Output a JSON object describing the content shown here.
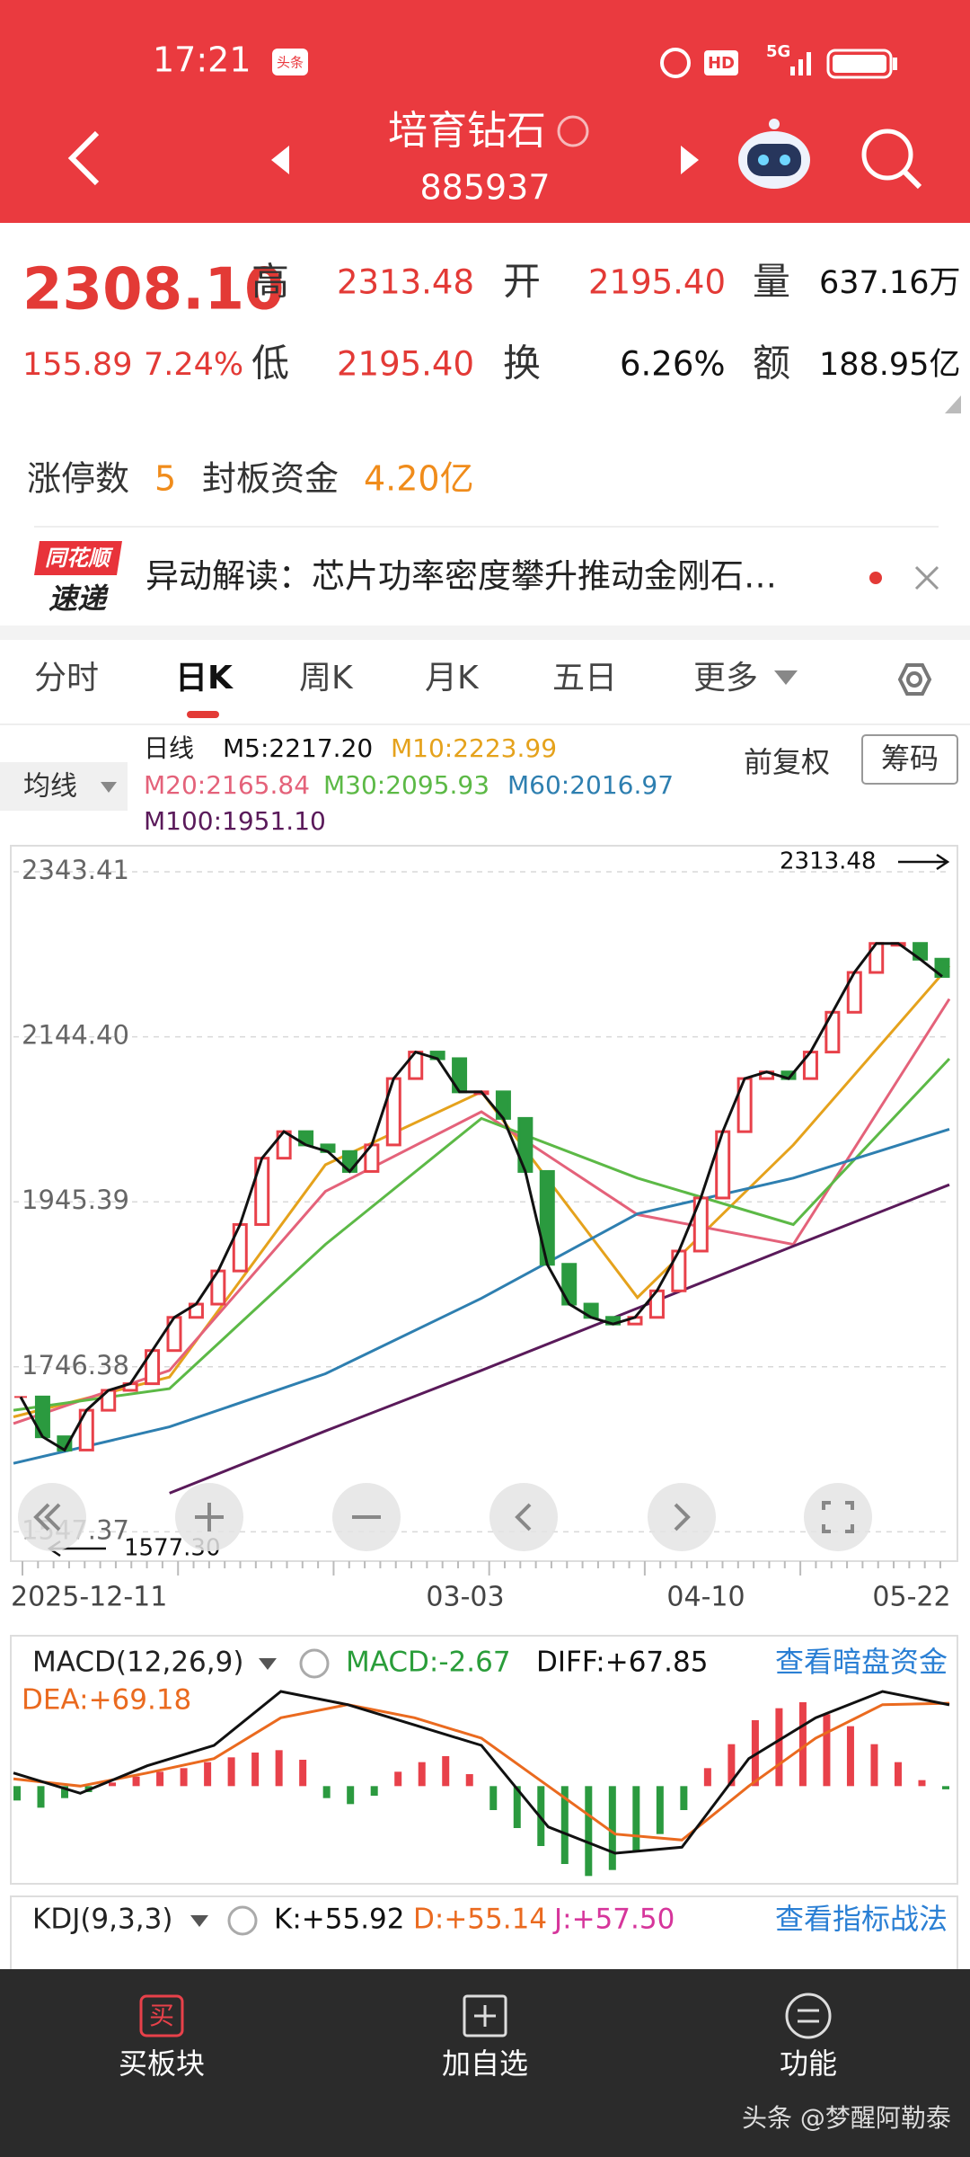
{
  "status": {
    "time": "17:21",
    "badge": "头条",
    "hd": "HD",
    "network": "5G"
  },
  "header": {
    "title": "培育钻石",
    "code": "885937"
  },
  "quote": {
    "price": "2308.10",
    "change": "155.89",
    "change_pct": "7.24%",
    "fields": [
      {
        "label": "高",
        "value": "2313.48"
      },
      {
        "label": "开",
        "value": "2195.40"
      },
      {
        "label": "量",
        "value": "637.16万"
      },
      {
        "label": "低",
        "value": "2195.40"
      },
      {
        "label": "换",
        "value": "6.26%"
      },
      {
        "label": "额",
        "value": "188.95亿"
      }
    ]
  },
  "limit_up": {
    "label": "涨停数",
    "count": "5",
    "fund_label": "封板资金",
    "fund": "4.20亿"
  },
  "news": {
    "logo_top": "同花顺",
    "logo_bottom": "速递",
    "text": "异动解读：芯片功率密度攀升推动金刚石…"
  },
  "tabs": [
    "分时",
    "日K",
    "周K",
    "月K",
    "五日",
    "更多"
  ],
  "ma_legend": {
    "selector": "均线",
    "period": "日线",
    "items": [
      {
        "text": "M5:2217.20",
        "color": "#111111"
      },
      {
        "text": "M10:2223.99",
        "color": "#e5a21c"
      },
      {
        "text": "M20:2165.84",
        "color": "#e4627a"
      },
      {
        "text": "M30:2095.93",
        "color": "#5cb946"
      },
      {
        "text": "M60:2016.97",
        "color": "#2e7fb0"
      },
      {
        "text": "M100:1951.10",
        "color": "#5a1a5a"
      }
    ],
    "adjust": "前复权",
    "chips": "筹码"
  },
  "kline": {
    "ylim": [
      1514.2,
      2371.6
    ],
    "yticks": [
      1547.37,
      1746.38,
      1945.39,
      {
        "value": 2144.4,
        "label": "2144.40"
      },
      2343.41
    ],
    "close": [
      1710,
      1662,
      1646,
      1694,
      1718,
      1726,
      1766,
      1806,
      1822,
      1862,
      1918,
      1998,
      2030,
      2014,
      2006,
      1982,
      2014,
      2094,
      2126,
      2118,
      2078,
      2078,
      2046,
      1982,
      1870,
      1822,
      1806,
      1798,
      1806,
      1838,
      1886,
      1950,
      2030,
      2094,
      2102,
      2094,
      2126,
      2174,
      2222,
      2257,
      2257,
      2238,
      2217.2
    ],
    "up_color": "#e8414a",
    "down_color": "#2b9a3f",
    "line_color": "#111111",
    "averages": [
      {
        "values": [
          1686,
          1734,
          1990,
          2078,
          1830,
          2014,
          2230
        ],
        "color": "#e5a21c"
      },
      {
        "values": [
          1678,
          1742,
          1958,
          2054,
          1930,
          1894,
          2190
        ],
        "color": "#e4627a"
      },
      {
        "values": [
          1694,
          1720,
          1894,
          2046,
          1974,
          1918,
          2118
        ],
        "color": "#5cb946"
      },
      {
        "values": [
          1630,
          1674,
          1738,
          1829,
          1931,
          1974,
          2033
        ],
        "color": "#2e7fb0"
      },
      {
        "values": [
          null,
          1594,
          1669,
          1742,
          1817,
          1892,
          1966
        ],
        "color": "#5a1a5a"
      }
    ],
    "high_label": "2313.48",
    "low_label": "1577.30",
    "dates": [
      "2025-12-11",
      "03-03",
      "04-10",
      "05-22"
    ]
  },
  "macd": {
    "title": "MACD(12,26,9)",
    "macd": "MACD:-2.67",
    "diff_text": "DIFF:+67.85",
    "dea_text": "DEA:+69.18",
    "link": "查看暗盘资金",
    "ylim": [
      -80,
      85
    ],
    "histogram": [
      -12,
      -18,
      -10,
      -5,
      3,
      8,
      12,
      15,
      20,
      24,
      28,
      30,
      22,
      -10,
      -15,
      -8,
      12,
      20,
      25,
      10,
      -20,
      -35,
      -50,
      -65,
      -75,
      -70,
      -55,
      -40,
      -20,
      15,
      35,
      55,
      65,
      70,
      60,
      50,
      35,
      20,
      5,
      -2.67
    ],
    "diff": [
      11,
      -6,
      17,
      34,
      79,
      68,
      51,
      34,
      -34,
      -56,
      -51,
      23,
      57,
      79,
      67.85
    ],
    "dea": [
      6,
      0,
      11,
      23,
      57,
      68,
      57,
      40,
      0,
      -40,
      -45,
      0,
      40,
      68,
      69.18
    ],
    "up_color": "#e8414a",
    "down_color": "#2b9a3f",
    "diff_color": "#111111",
    "dea_color": "#ea6a1f"
  },
  "kdj": {
    "title": "KDJ(9,3,3)",
    "k": "K:+55.92",
    "d": "D:+55.14",
    "j": "J:+57.50",
    "link": "查看指标战法"
  },
  "bottom": {
    "buy_icon": "买",
    "items": [
      "买板块",
      "加自选",
      "功能"
    ],
    "watermark": "头条 @梦醒阿勒泰"
  }
}
